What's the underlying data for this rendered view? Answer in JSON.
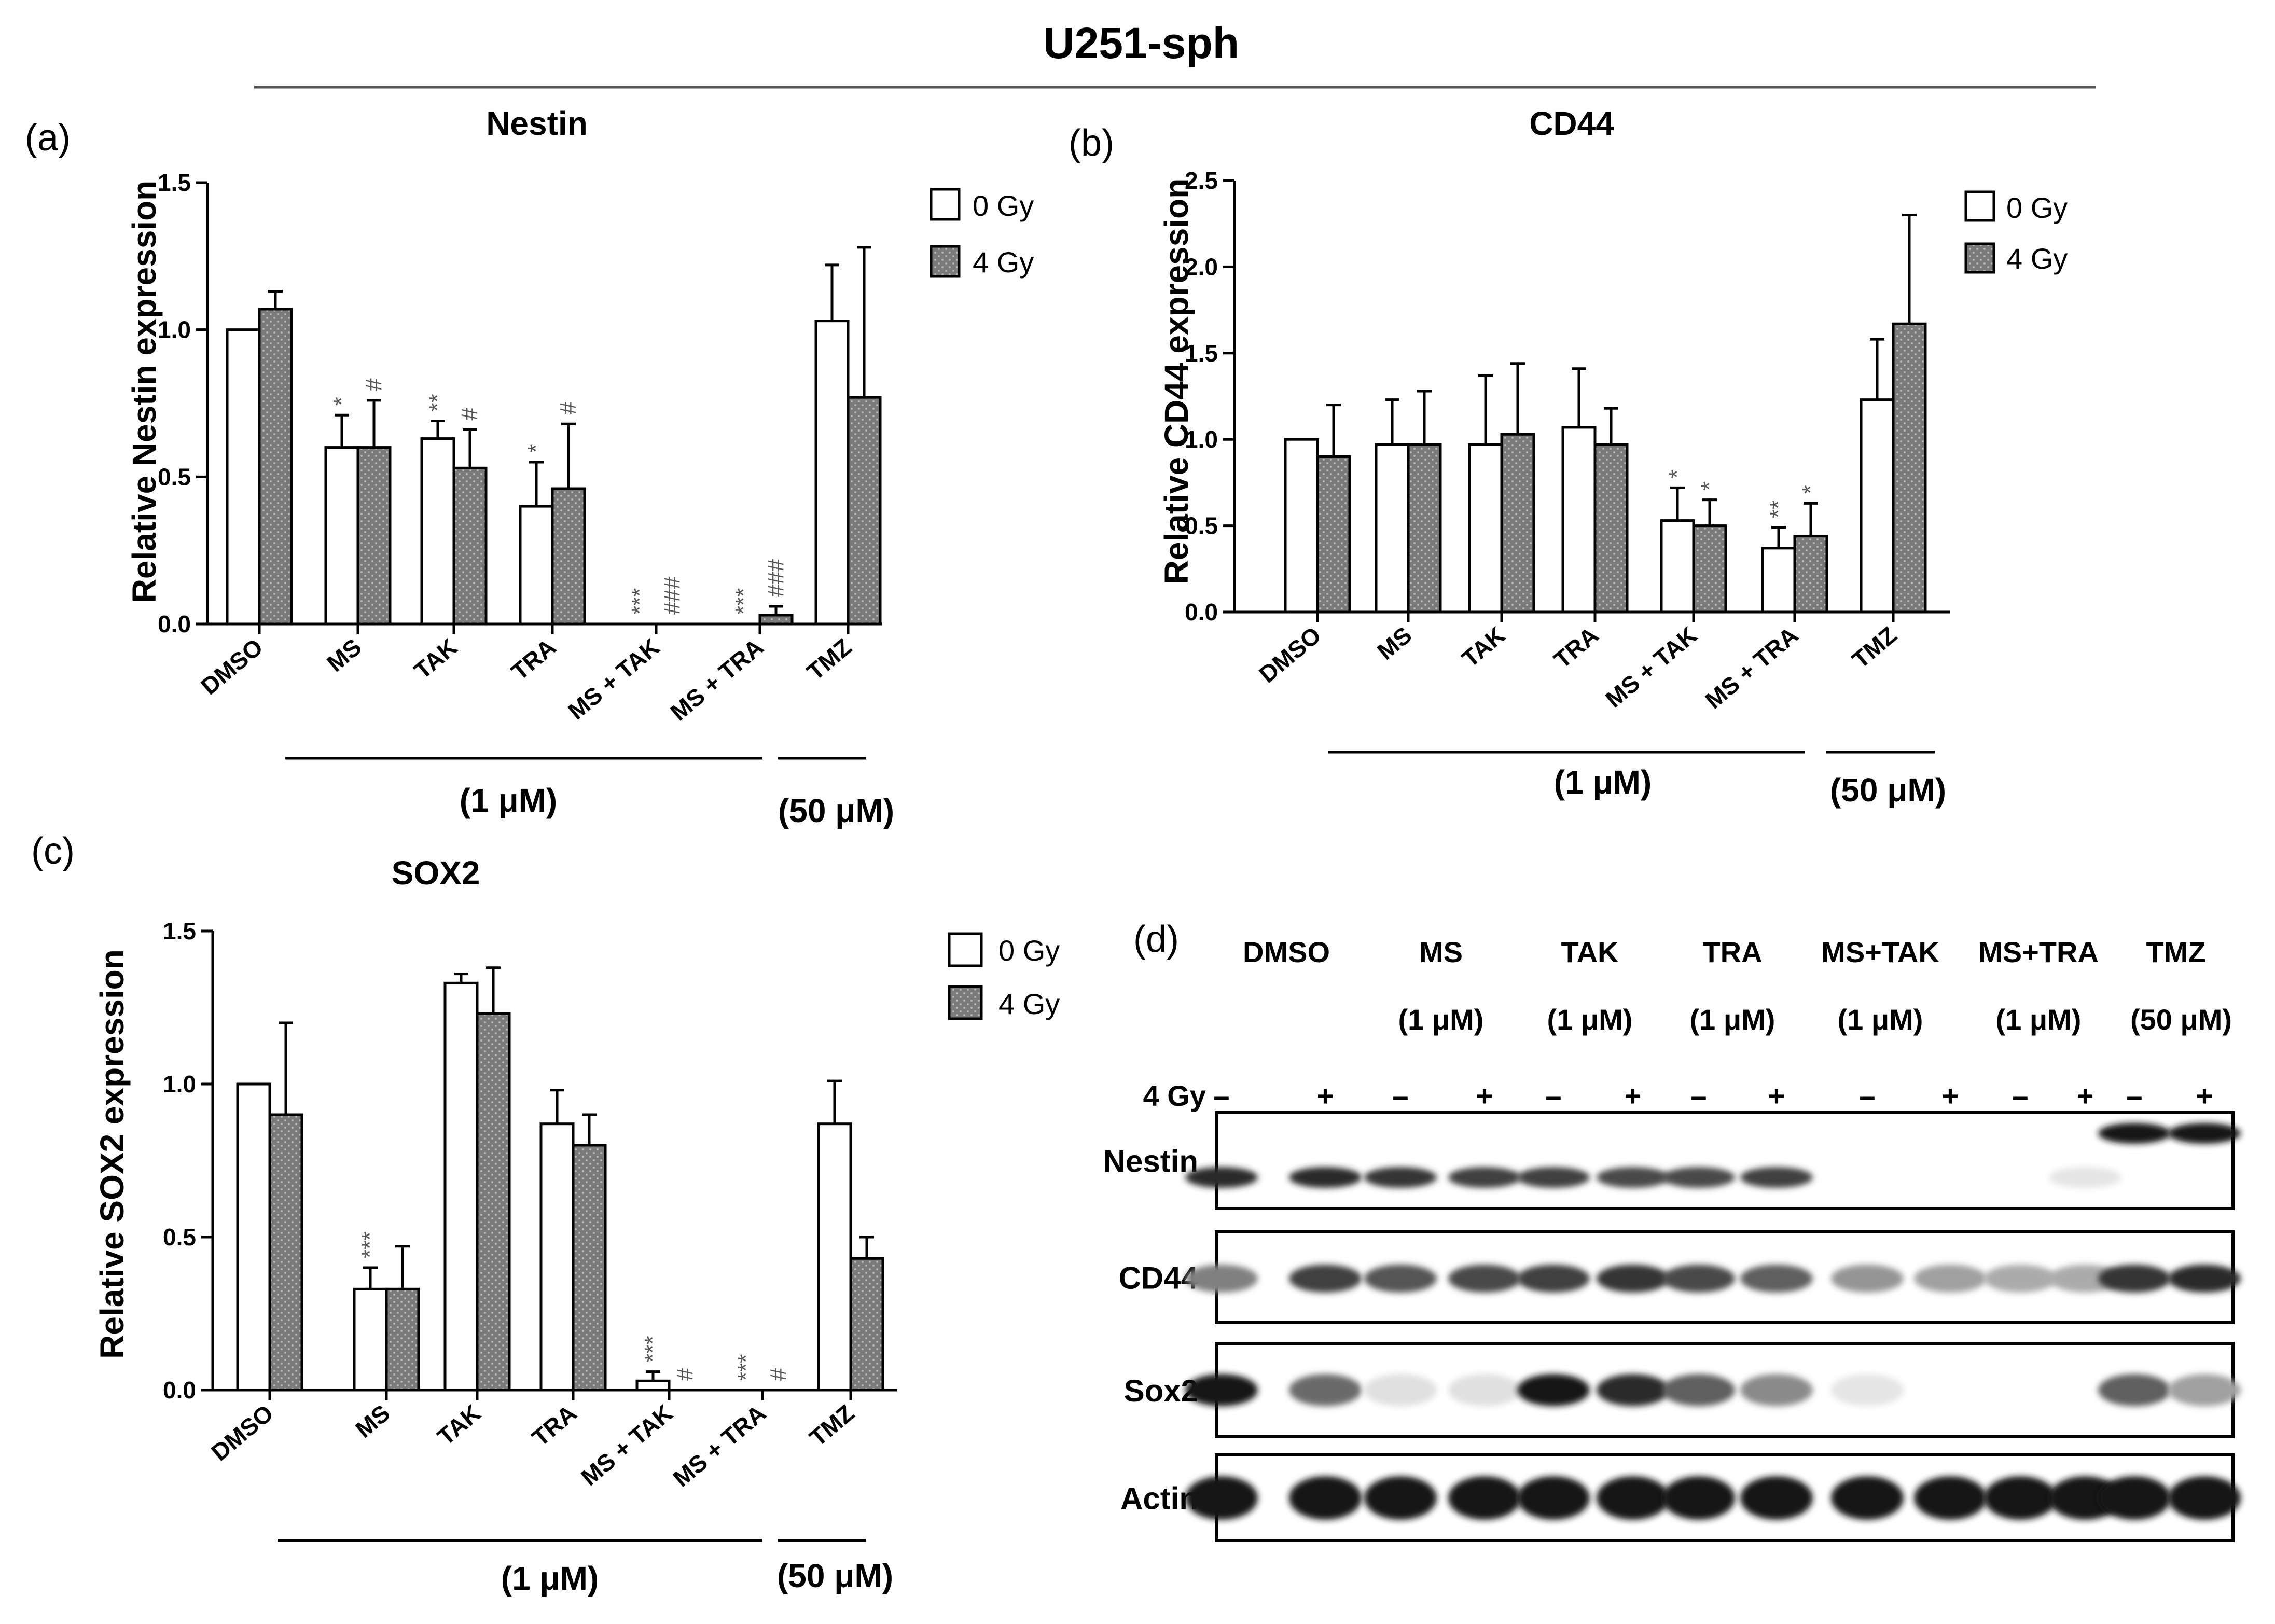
{
  "figure_title": "U251-sph",
  "units": {
    "one_um": "(1 μM)",
    "fifty_um": "(50 μM)"
  },
  "legend": {
    "zero_gy": "0 Gy",
    "four_gy": "4 Gy"
  },
  "colors": {
    "bar_0gy": "#ffffff",
    "bar_4gy": "#7a7a7a",
    "axis": "#000000",
    "sig_marks": "#555555"
  },
  "chart_data": [
    {
      "panel": "(a)",
      "type": "bar",
      "title": "Nestin",
      "ylabel": "Relative Nestin expression",
      "ylim": [
        0,
        1.5
      ],
      "yticks": [
        "0.0",
        "0.5",
        "1.0",
        "1.5"
      ],
      "categories": [
        "DMSO",
        "MS",
        "TAK",
        "TRA",
        "MS + TAK",
        "MS + TRA",
        "TMZ"
      ],
      "series": [
        {
          "name": "0 Gy",
          "values": [
            1.0,
            0.6,
            0.63,
            0.4,
            0.0,
            0.0,
            1.03
          ],
          "errors": [
            0.0,
            0.11,
            0.06,
            0.15,
            0.0,
            0.0,
            0.19
          ]
        },
        {
          "name": "4 Gy",
          "values": [
            1.07,
            0.6,
            0.53,
            0.46,
            0.0,
            0.03,
            0.77
          ],
          "errors": [
            0.06,
            0.16,
            0.13,
            0.22,
            0.0,
            0.03,
            0.51
          ]
        }
      ],
      "significance": [
        {
          "cat": 1,
          "series": 0,
          "text": "*"
        },
        {
          "cat": 1,
          "series": 1,
          "text": "#"
        },
        {
          "cat": 2,
          "series": 0,
          "text": "**"
        },
        {
          "cat": 2,
          "series": 1,
          "text": "#"
        },
        {
          "cat": 3,
          "series": 0,
          "text": "*"
        },
        {
          "cat": 3,
          "series": 1,
          "text": "#"
        },
        {
          "cat": 4,
          "series": 0,
          "text": "***"
        },
        {
          "cat": 4,
          "series": 1,
          "text": "###"
        },
        {
          "cat": 5,
          "series": 0,
          "text": "***"
        },
        {
          "cat": 5,
          "series": 1,
          "text": "###"
        }
      ]
    },
    {
      "panel": "(b)",
      "type": "bar",
      "title": "CD44",
      "ylabel": "Relative CD44 expression",
      "ylim": [
        0,
        2.5
      ],
      "yticks": [
        "0.0",
        "0.5",
        "1.0",
        "1.5",
        "2.0",
        "2.5"
      ],
      "categories": [
        "DMSO",
        "MS",
        "TAK",
        "TRA",
        "MS + TAK",
        "MS + TRA",
        "TMZ"
      ],
      "series": [
        {
          "name": "0 Gy",
          "values": [
            1.0,
            0.97,
            0.97,
            1.07,
            0.53,
            0.37,
            1.23
          ],
          "errors": [
            0.0,
            0.26,
            0.4,
            0.34,
            0.19,
            0.12,
            0.35
          ]
        },
        {
          "name": "4 Gy",
          "values": [
            0.9,
            0.97,
            1.03,
            0.97,
            0.5,
            0.44,
            1.67
          ],
          "errors": [
            0.3,
            0.31,
            0.41,
            0.21,
            0.15,
            0.19,
            0.63
          ]
        }
      ],
      "significance": [
        {
          "cat": 4,
          "series": 0,
          "text": "*"
        },
        {
          "cat": 4,
          "series": 1,
          "text": "*"
        },
        {
          "cat": 5,
          "series": 0,
          "text": "**"
        },
        {
          "cat": 5,
          "series": 1,
          "text": "*"
        }
      ]
    },
    {
      "panel": "(c)",
      "type": "bar",
      "title": "SOX2",
      "ylabel": "Relative SOX2 expression",
      "ylim": [
        0,
        1.5
      ],
      "yticks": [
        "0.0",
        "0.5",
        "1.0",
        "1.5"
      ],
      "categories": [
        "DMSO",
        "MS",
        "TAK",
        "TRA",
        "MS + TAK",
        "MS + TRA",
        "TMZ"
      ],
      "series": [
        {
          "name": "0 Gy",
          "values": [
            1.0,
            0.33,
            1.33,
            0.87,
            0.03,
            0.0,
            0.87
          ],
          "errors": [
            0.0,
            0.07,
            0.03,
            0.11,
            0.03,
            0.0,
            0.14
          ]
        },
        {
          "name": "4 Gy",
          "values": [
            0.9,
            0.33,
            1.23,
            0.8,
            0.0,
            0.0,
            0.43
          ],
          "errors": [
            0.3,
            0.14,
            0.15,
            0.1,
            0.0,
            0.0,
            0.07
          ]
        }
      ],
      "significance": [
        {
          "cat": 1,
          "series": 0,
          "text": "***"
        },
        {
          "cat": 4,
          "series": 0,
          "text": "***"
        },
        {
          "cat": 4,
          "series": 1,
          "text": "#"
        },
        {
          "cat": 5,
          "series": 0,
          "text": "***"
        },
        {
          "cat": 5,
          "series": 1,
          "text": "#"
        }
      ]
    }
  ],
  "panel_d": {
    "label": "(d)",
    "lanes": [
      {
        "name": "DMSO",
        "conc": ""
      },
      {
        "name": "MS",
        "conc": "(1 μM)"
      },
      {
        "name": "TAK",
        "conc": "(1 μM)"
      },
      {
        "name": "TRA",
        "conc": "(1 μM)"
      },
      {
        "name": "MS+TAK",
        "conc": "(1 μM)"
      },
      {
        "name": "MS+TRA",
        "conc": "(1 μM)"
      },
      {
        "name": "TMZ",
        "conc": "(50 μM)"
      }
    ],
    "irradiation_label": "4 Gy",
    "irradiation_signs": [
      "–",
      "+",
      "–",
      "+",
      "–",
      "+",
      "–",
      "+",
      "–",
      "+",
      "–",
      "+",
      "–",
      "+"
    ],
    "blots": [
      {
        "name": "Nestin",
        "intensities": [
          0.9,
          0.9,
          0.85,
          0.8,
          0.8,
          0.75,
          0.75,
          0.8,
          0.0,
          0.0,
          0.0,
          0.03,
          1.0,
          1.0
        ]
      },
      {
        "name": "CD44",
        "intensities": [
          0.5,
          0.8,
          0.7,
          0.75,
          0.8,
          0.85,
          0.75,
          0.65,
          0.4,
          0.35,
          0.3,
          0.3,
          0.85,
          0.9
        ]
      },
      {
        "name": "Sox2",
        "intensities": [
          1.0,
          0.6,
          0.05,
          0.05,
          1.0,
          0.9,
          0.65,
          0.45,
          0.03,
          0.0,
          0.0,
          0.0,
          0.65,
          0.35
        ]
      },
      {
        "name": "Actin",
        "intensities": [
          1.0,
          1.0,
          1.0,
          1.0,
          1.0,
          1.0,
          1.0,
          1.0,
          1.0,
          1.0,
          1.0,
          1.0,
          1.0,
          1.0
        ]
      }
    ]
  }
}
